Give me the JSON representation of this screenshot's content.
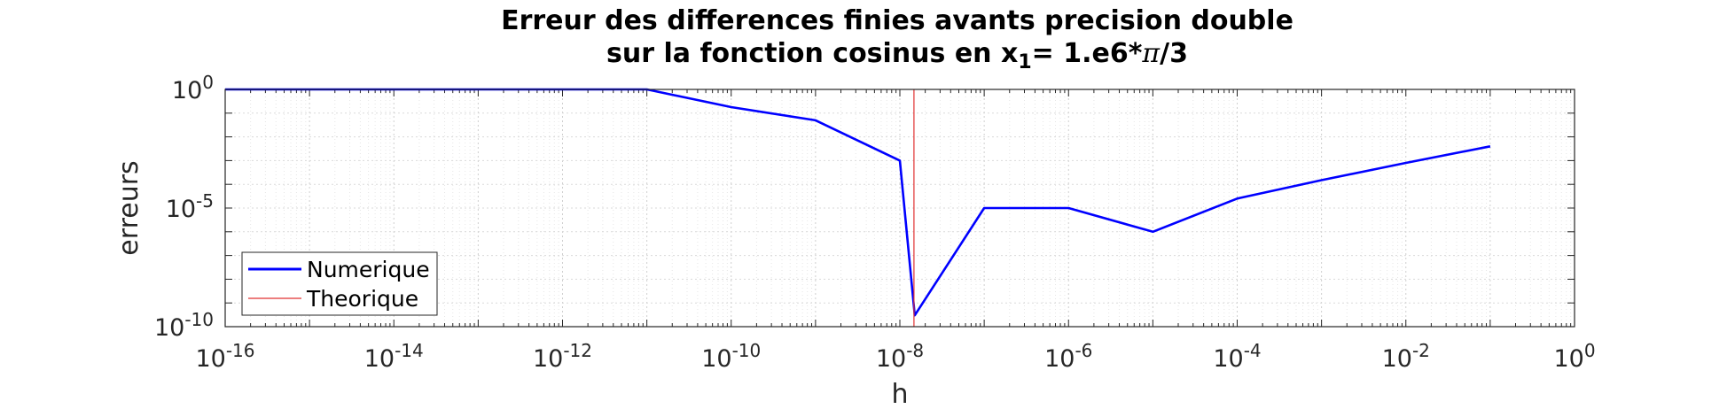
{
  "chart_data": {
    "type": "line",
    "title": {
      "line1": "Erreur des differences finies avants precision double",
      "line2_prefix": "sur la fonction cosinus en x",
      "line2_subscript": "1",
      "line2_suffix": "= 1.e6*",
      "line2_symbol": "π",
      "line2_end": "/3"
    },
    "xlabel": "h",
    "ylabel": "erreurs",
    "xscale": "log",
    "yscale": "log",
    "xlim": [
      1e-16,
      1
    ],
    "ylim": [
      1e-10,
      1
    ],
    "grid": true,
    "x_ticks": [
      {
        "value": 1e-16,
        "base": "10",
        "exp": "-16"
      },
      {
        "value": 1e-14,
        "base": "10",
        "exp": "-14"
      },
      {
        "value": 1e-12,
        "base": "10",
        "exp": "-12"
      },
      {
        "value": 1e-10,
        "base": "10",
        "exp": "-10"
      },
      {
        "value": 1e-08,
        "base": "10",
        "exp": "-8"
      },
      {
        "value": 1e-06,
        "base": "10",
        "exp": "-6"
      },
      {
        "value": 0.0001,
        "base": "10",
        "exp": "-4"
      },
      {
        "value": 0.01,
        "base": "10",
        "exp": "-2"
      },
      {
        "value": 1,
        "base": "10",
        "exp": "0"
      }
    ],
    "y_ticks": [
      {
        "value": 1e-10,
        "base": "10",
        "exp": "-10"
      },
      {
        "value": 1e-05,
        "base": "10",
        "exp": "-5"
      },
      {
        "value": 1,
        "base": "10",
        "exp": "0"
      }
    ],
    "legend_position": "bottom-left",
    "series": [
      {
        "name": "Numerique",
        "color": "#0000ff",
        "points": [
          [
            1e-16,
            1
          ],
          [
            1e-15,
            1
          ],
          [
            1e-14,
            1
          ],
          [
            1e-13,
            1
          ],
          [
            1e-12,
            1
          ],
          [
            1e-11,
            1
          ],
          [
            1e-10,
            0.18
          ],
          [
            1e-09,
            0.05
          ],
          [
            1e-08,
            0.001
          ],
          [
            1.5e-08,
            3e-10
          ],
          [
            1e-07,
            1e-05
          ],
          [
            1e-06,
            1e-05
          ],
          [
            1e-05,
            1e-06
          ],
          [
            0.0001,
            2.5e-05
          ],
          [
            0.001,
            0.00015
          ],
          [
            0.01,
            0.0008
          ],
          [
            0.1,
            0.004
          ]
        ]
      },
      {
        "name": "Theorique",
        "color": "#e03030",
        "points": [
          [
            1.47e-08,
            1
          ],
          [
            1.47e-08,
            1e-10
          ]
        ]
      }
    ]
  }
}
